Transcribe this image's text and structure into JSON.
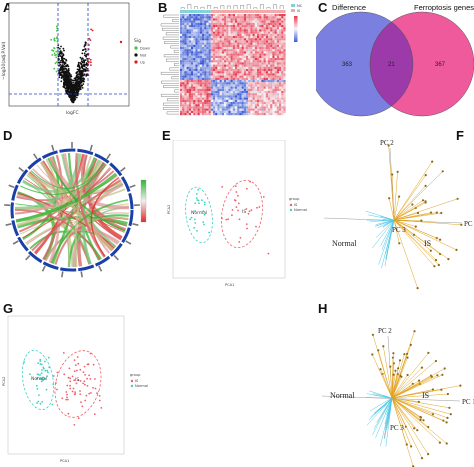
{
  "panels": {
    "A": {
      "label": "A",
      "xlabel": "logFC",
      "ylabel": "−log10(adj.P.Val)",
      "legend_title": "Sig",
      "legend": [
        "Down",
        "Not",
        "Up"
      ],
      "colors": {
        "down": "#3cc43c",
        "not": "#111111",
        "up": "#e01919",
        "threshold": "#2244cc"
      }
    },
    "B": {
      "label": "B",
      "legend_items": [
        "NC",
        "IS"
      ],
      "colors": {
        "high": "#e8384f",
        "mid": "#f7f7f7",
        "low": "#3b5bd6",
        "group_nc": "#7fd3d8",
        "group_is": "#f2a6a6"
      }
    },
    "C": {
      "label": "C",
      "set_left": "Difference",
      "set_right": "Ferroptosis genes",
      "only_left": "363",
      "overlap": "21",
      "only_right": "367",
      "colors": {
        "left": "#7b7fe0",
        "right": "#ef5a9c",
        "overlap": "#9b3aa8"
      }
    },
    "D": {
      "label": "D",
      "colors": {
        "pos": "#2fb52f",
        "neg": "#e02828",
        "mid": "#f0f0f0",
        "ring": "#1a3fa8"
      }
    },
    "E": {
      "label": "E",
      "xlabel": "PCA1",
      "ylabel": "PCA2",
      "group_normal": "Normal",
      "group_is": "IS",
      "legend_title": "group",
      "legend": [
        "IS",
        "Normal"
      ],
      "colors": {
        "is": "#f0606a",
        "normal": "#3cd3c4"
      }
    },
    "F": {
      "label": "F",
      "axis_x": "PC 1",
      "axis_y": "PC 2",
      "axis_3": "PC 3",
      "group_normal": "Normal",
      "group_is": "IS",
      "colors": {
        "is": "#e3a21f",
        "normal": "#4fc9e8",
        "point": "#8a6a12"
      }
    },
    "G": {
      "label": "G",
      "xlabel": "PCA1",
      "ylabel": "PCA2",
      "group_normal": "Normal",
      "group_is": "IS",
      "legend_title": "group",
      "legend": [
        "IS",
        "Normal"
      ],
      "colors": {
        "is": "#f0606a",
        "normal": "#3cd3c4"
      }
    },
    "H": {
      "label": "H",
      "axis_x": "PC 1",
      "axis_y": "PC 2",
      "axis_3": "PC 3",
      "group_normal": "Normal",
      "group_is": "IS",
      "colors": {
        "is": "#e3a21f",
        "normal": "#4fc9e8",
        "point": "#8a6a12"
      }
    }
  }
}
